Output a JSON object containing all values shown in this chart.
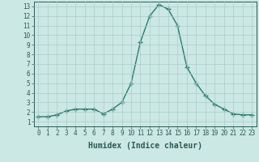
{
  "x": [
    0,
    1,
    2,
    3,
    4,
    5,
    6,
    7,
    8,
    9,
    10,
    11,
    12,
    13,
    14,
    15,
    16,
    17,
    18,
    19,
    20,
    21,
    22,
    23
  ],
  "y": [
    1.5,
    1.5,
    1.7,
    2.1,
    2.3,
    2.3,
    2.3,
    1.8,
    2.3,
    3.0,
    5.0,
    9.3,
    12.0,
    13.2,
    12.7,
    11.0,
    6.7,
    5.0,
    3.7,
    2.8,
    2.3,
    1.8,
    1.7,
    1.7
  ],
  "line_color": "#2a7a6a",
  "marker": "+",
  "marker_size": 4,
  "linewidth": 1.0,
  "xlabel": "Humidex (Indice chaleur)",
  "xlabel_fontsize": 7,
  "background_color": "#cce8e4",
  "grid_color": "#aaccc8",
  "xlim": [
    -0.5,
    23.5
  ],
  "ylim": [
    0.5,
    13.5
  ],
  "xticks": [
    0,
    1,
    2,
    3,
    4,
    5,
    6,
    7,
    8,
    9,
    10,
    11,
    12,
    13,
    14,
    15,
    16,
    17,
    18,
    19,
    20,
    21,
    22,
    23
  ],
  "yticks": [
    1,
    2,
    3,
    4,
    5,
    6,
    7,
    8,
    9,
    10,
    11,
    12,
    13
  ],
  "tick_fontsize": 5.5,
  "axis_color": "#2a5a52"
}
